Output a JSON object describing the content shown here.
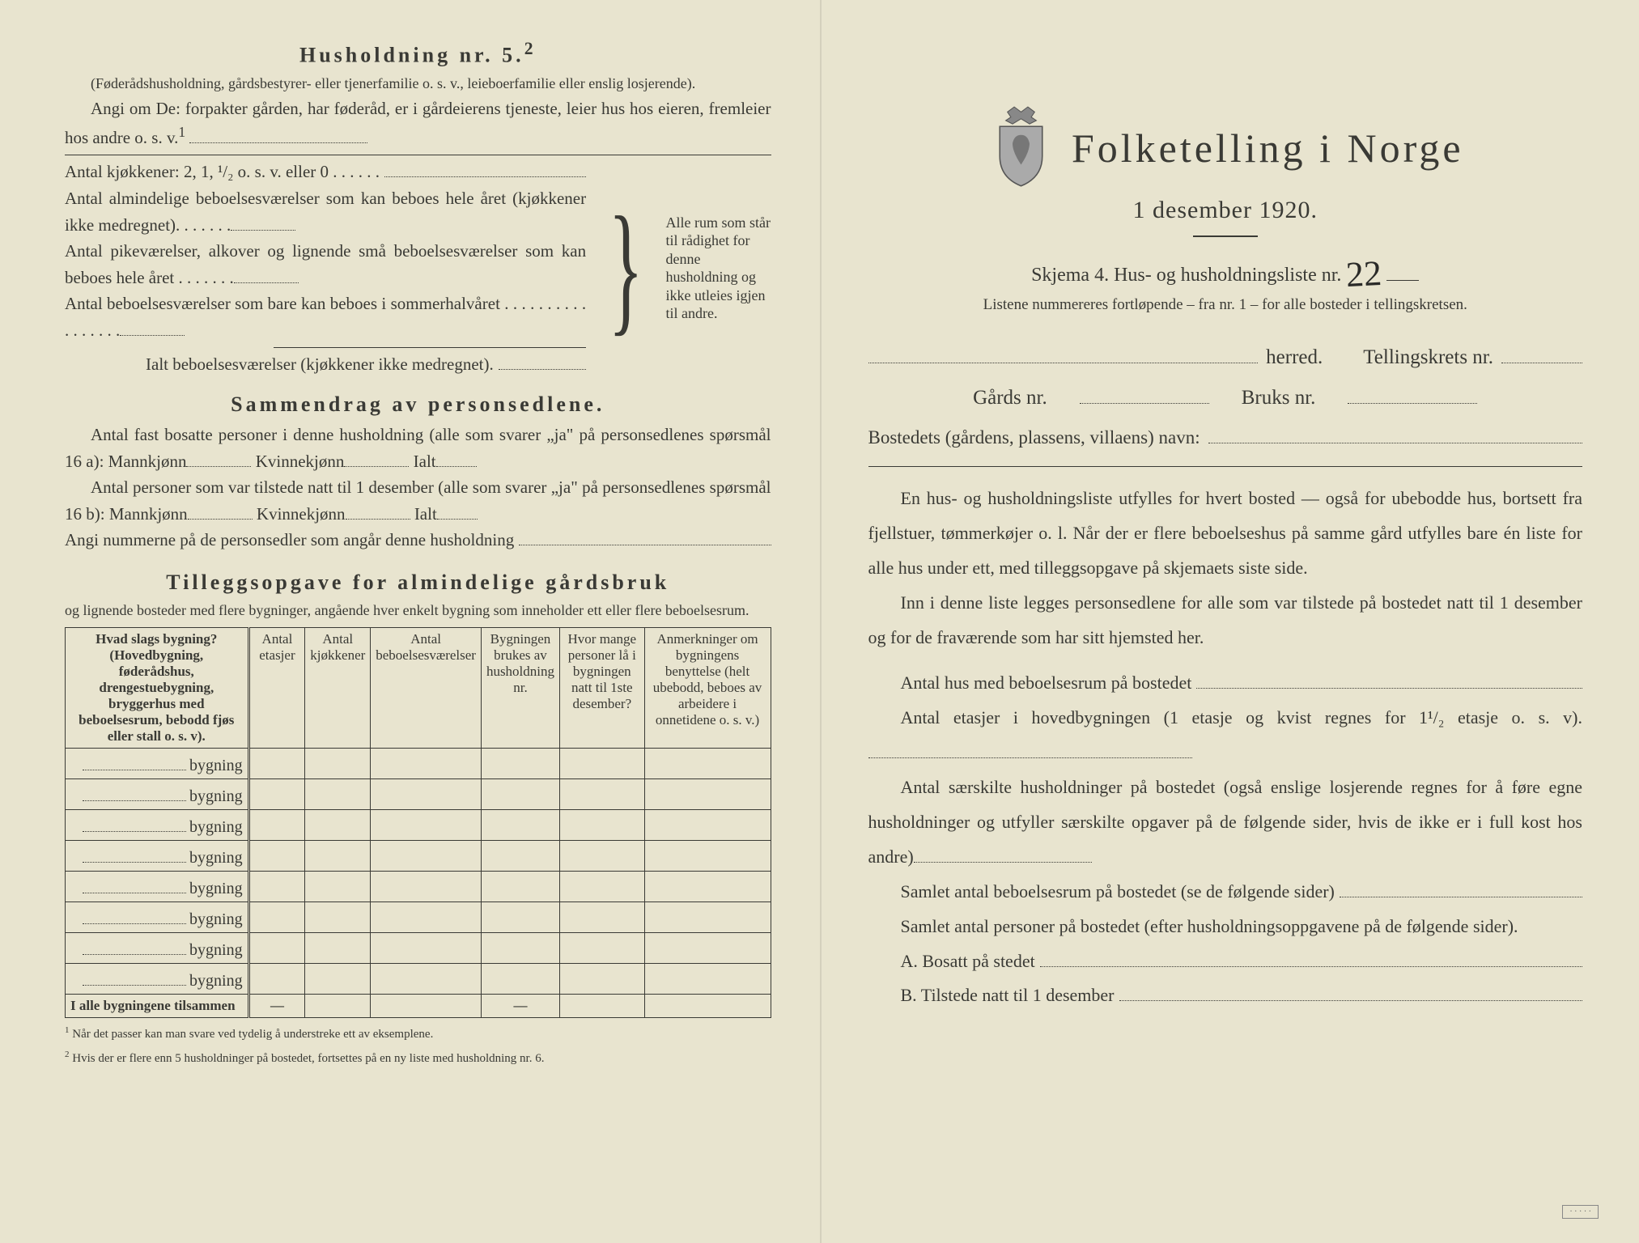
{
  "left": {
    "h5_title": "Husholdning nr. 5.",
    "h5_sup": "2",
    "h5_note": "(Føderådshusholdning, gårdsbestyrer- eller tjenerfamilie o. s. v., leieboerfamilie eller enslig losjerende).",
    "h5_para": "Angi om De: forpakter gården, har føderåd, er i gårdeierens tjeneste, leier hus hos eieren, fremleier hos andre o. s. v.",
    "h5_sup2": "1",
    "kj_line": "Antal kjøkkener: 2, 1, ¹/₂ o. s. v. eller 0 . . . . . .",
    "alm1": "Antal almindelige beboelsesværelser som kan beboes hele året (kjøkkener ikke medregnet). . . . . . .",
    "alm2": "Antal pikeværelser, alkover og lignende små beboelsesværelser som kan beboes hele året . . . . . . .",
    "alm3": "Antal beboelsesværelser som bare kan beboes i sommerhalvåret . . . . . . . . . . . . . . . . .",
    "ialt": "Ialt beboelsesværelser (kjøkkener ikke medregnet).",
    "brace_text": "Alle rum som står til rådighet for denne husholdning og ikke utleies igjen til andre.",
    "sammendrag_title": "Sammendrag av personsedlene.",
    "sam1": "Antal fast bosatte personer i denne husholdning (alle som svarer „ja\" på personsedlenes spørsmål 16 a): Mannkjønn",
    "kvinne": "Kvinnekjønn",
    "ialt_lbl": "Ialt",
    "sam2": "Antal personer som var tilstede natt til 1 desember (alle som svarer „ja\" på personsedlenes spørsmål 16 b): Mannkjønn",
    "angi": "Angi nummerne på de personsedler som angår denne husholdning",
    "tillegg_title": "Tilleggsopgave for almindelige gårdsbruk",
    "tillegg_sub": "og lignende bosteder med flere bygninger, angående hver enkelt bygning som inneholder ett eller flere beboelsesrum.",
    "table": {
      "headers": [
        "Hvad slags bygning?\n(Hovedbygning, føderådshus, drengestuebygning, bryggerhus med beboelsesrum, bebodd fjøs eller stall o. s. v).",
        "Antal etasjer",
        "Antal kjøkkener",
        "Antal beboelsesværelser",
        "Bygningen brukes av husholdning nr.",
        "Hvor mange personer lå i bygningen natt til 1ste desember?",
        "Anmerkninger om bygningens benyttelse (helt ubebodd, beboes av arbeidere i onnetidene o. s. v.)"
      ],
      "row_label": "bygning",
      "row_count": 8,
      "total_label": "I alle bygningene tilsammen",
      "dash": "—"
    },
    "foot1": "Når det passer kan man svare ved tydelig å understreke ett av eksemplene.",
    "foot2": "Hvis der er flere enn 5 husholdninger på bostedet, fortsettes på en ny liste med husholdning nr. 6."
  },
  "right": {
    "title": "Folketelling i Norge",
    "subtitle": "1 desember 1920.",
    "skjema": "Skjema 4.  Hus- og husholdningsliste nr.",
    "handwritten_nr": "22",
    "listene": "Listene nummereres fortløpende – fra nr. 1 – for alle bosteder i tellingskretsen.",
    "herred": "herred.",
    "tellingskrets": "Tellingskrets nr.",
    "gards": "Gårds nr.",
    "bruks": "Bruks nr.",
    "bostedets": "Bostedets (gårdens, plassens, villaens) navn:",
    "p1": "En hus- og husholdningsliste utfylles for hvert bosted — også for ubebodde hus, bortsett fra fjellstuer, tømmerkøjer o. l.  Når der er flere beboelseshus på samme gård utfylles bare én liste for alle hus under ett, med tilleggsopgave på skjemaets siste side.",
    "p2": "Inn i denne liste legges personsedlene for alle som var tilstede på bostedet natt til 1 desember og for de fraværende som har sitt hjemsted her.",
    "q1": "Antal hus med beboelsesrum på bostedet",
    "q2a": "Antal etasjer i hovedbygningen (1 etasje og kvist regnes for 1¹/₂ etasje o. s. v).",
    "q3": "Antal særskilte husholdninger på bostedet (også enslige losjerende regnes for å føre egne husholdninger og utfyller særskilte opgaver på de følgende sider, hvis de ikke er i full kost hos andre)",
    "q4": "Samlet antal beboelsesrum på bostedet (se de følgende sider)",
    "q5": "Samlet antal personer på bostedet (efter husholdningsoppgavene på de følgende sider).",
    "qA": "A.  Bosatt på stedet",
    "qB": "B.  Tilstede natt til 1 desember"
  }
}
